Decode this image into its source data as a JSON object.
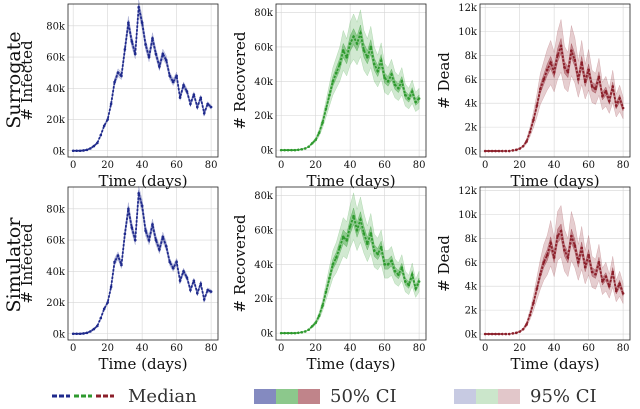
{
  "figure": {
    "row_labels": [
      "Surrogate",
      "Simulator"
    ],
    "legend": {
      "median": "Median",
      "ci50": "50% CI",
      "ci95": "95% CI"
    },
    "colors": {
      "infected": "#1f2a8c",
      "recovered": "#2e9a2e",
      "dead": "#8c1f2a"
    }
  },
  "chart_data": [
    {
      "row": "Surrogate",
      "metric": "infected",
      "type": "line",
      "xlabel": "Time (days)",
      "ylabel": "# Infected",
      "xlim": [
        -3,
        84
      ],
      "ylim": [
        -4000,
        94000
      ],
      "xticks": [
        0,
        20,
        40,
        60,
        80
      ],
      "xtick_labels": [
        "0",
        "20",
        "40",
        "60",
        "80"
      ],
      "yticks": [
        0,
        20000,
        40000,
        60000,
        80000
      ],
      "ytick_labels": [
        "0k",
        "20k",
        "40k",
        "60k",
        "80k"
      ],
      "ci_relative": [
        0.02,
        0.05
      ],
      "x": [
        0,
        2,
        4,
        6,
        8,
        10,
        12,
        14,
        16,
        18,
        20,
        22,
        24,
        26,
        28,
        30,
        32,
        34,
        36,
        38,
        40,
        42,
        44,
        46,
        48,
        50,
        52,
        54,
        56,
        58,
        60,
        62,
        64,
        66,
        68,
        70,
        72,
        74,
        76,
        78,
        80
      ],
      "median": [
        0,
        0,
        0,
        200,
        600,
        1500,
        3000,
        5000,
        10000,
        16000,
        20000,
        30000,
        44000,
        50000,
        48000,
        65000,
        82000,
        70000,
        62000,
        92000,
        82000,
        68000,
        60000,
        72000,
        62000,
        54000,
        62000,
        58000,
        48000,
        44000,
        48000,
        34000,
        42000,
        38000,
        30000,
        36000,
        28000,
        34000,
        24000,
        30000,
        28000
      ]
    },
    {
      "row": "Surrogate",
      "metric": "recovered",
      "type": "line",
      "xlabel": "Time (days)",
      "ylabel": "# Recovered",
      "xlim": [
        -3,
        84
      ],
      "ylim": [
        -4000,
        85000
      ],
      "xticks": [
        0,
        20,
        40,
        60,
        80
      ],
      "xtick_labels": [
        "0",
        "20",
        "40",
        "60",
        "80"
      ],
      "yticks": [
        0,
        20000,
        40000,
        60000,
        80000
      ],
      "ytick_labels": [
        "0k",
        "20k",
        "40k",
        "60k",
        "80k"
      ],
      "ci_relative": [
        0.07,
        0.2
      ],
      "x": [
        0,
        2,
        4,
        6,
        8,
        10,
        12,
        14,
        16,
        18,
        20,
        22,
        24,
        26,
        28,
        30,
        32,
        34,
        36,
        38,
        40,
        42,
        44,
        46,
        48,
        50,
        52,
        54,
        56,
        58,
        60,
        62,
        64,
        66,
        68,
        70,
        72,
        74,
        76,
        78,
        80
      ],
      "median": [
        0,
        0,
        0,
        0,
        0,
        200,
        500,
        1000,
        2000,
        4000,
        6000,
        10000,
        16000,
        24000,
        32000,
        40000,
        45000,
        50000,
        58000,
        54000,
        62000,
        66000,
        62000,
        68000,
        58000,
        54000,
        60000,
        50000,
        46000,
        52000,
        42000,
        40000,
        44000,
        38000,
        36000,
        40000,
        32000,
        30000,
        34000,
        28000,
        30000
      ]
    },
    {
      "row": "Surrogate",
      "metric": "dead",
      "type": "line",
      "xlabel": "Time (days)",
      "ylabel": "# Dead",
      "xlim": [
        -3,
        84
      ],
      "ylim": [
        -500,
        12300
      ],
      "xticks": [
        0,
        20,
        40,
        60,
        80
      ],
      "xtick_labels": [
        "0",
        "20",
        "40",
        "60",
        "80"
      ],
      "yticks": [
        0,
        2000,
        4000,
        6000,
        8000,
        10000,
        12000
      ],
      "ytick_labels": [
        "0k",
        "2k",
        "4k",
        "6k",
        "8k",
        "10k",
        "12k"
      ],
      "ci_relative": [
        0.07,
        0.25
      ],
      "x": [
        0,
        2,
        4,
        6,
        8,
        10,
        12,
        14,
        16,
        18,
        20,
        22,
        24,
        26,
        28,
        30,
        32,
        34,
        36,
        38,
        40,
        42,
        44,
        46,
        48,
        50,
        52,
        54,
        56,
        58,
        60,
        62,
        64,
        66,
        68,
        70,
        72,
        74,
        76,
        78,
        80
      ],
      "median": [
        0,
        0,
        0,
        0,
        0,
        0,
        0,
        0,
        50,
        100,
        200,
        400,
        800,
        1600,
        2600,
        3800,
        5200,
        6000,
        6800,
        7400,
        6600,
        8000,
        8800,
        7000,
        6600,
        8400,
        7600,
        6000,
        7400,
        5800,
        6800,
        5400,
        5200,
        6200,
        4600,
        5000,
        4200,
        5400,
        3800,
        4400,
        3600
      ]
    },
    {
      "row": "Simulator",
      "metric": "infected",
      "type": "line",
      "xlabel": "Time (days)",
      "ylabel": "# Infected",
      "xlim": [
        -3,
        84
      ],
      "ylim": [
        -4000,
        94000
      ],
      "xticks": [
        0,
        20,
        40,
        60,
        80
      ],
      "xtick_labels": [
        "0",
        "20",
        "40",
        "60",
        "80"
      ],
      "yticks": [
        0,
        20000,
        40000,
        60000,
        80000
      ],
      "ytick_labels": [
        "0k",
        "20k",
        "40k",
        "60k",
        "80k"
      ],
      "ci_relative": [
        0.02,
        0.05
      ],
      "x": [
        0,
        2,
        4,
        6,
        8,
        10,
        12,
        14,
        16,
        18,
        20,
        22,
        24,
        26,
        28,
        30,
        32,
        34,
        36,
        38,
        40,
        42,
        44,
        46,
        48,
        50,
        52,
        54,
        56,
        58,
        60,
        62,
        64,
        66,
        68,
        70,
        72,
        74,
        76,
        78,
        80
      ],
      "median": [
        0,
        0,
        0,
        200,
        600,
        1500,
        3000,
        5000,
        10000,
        16000,
        20000,
        30000,
        46000,
        50000,
        44000,
        64000,
        80000,
        68000,
        60000,
        90000,
        82000,
        66000,
        60000,
        70000,
        60000,
        54000,
        62000,
        56000,
        46000,
        42000,
        46000,
        34000,
        40000,
        36000,
        28000,
        34000,
        26000,
        32000,
        22000,
        28000,
        27000
      ]
    },
    {
      "row": "Simulator",
      "metric": "recovered",
      "type": "line",
      "xlabel": "Time (days)",
      "ylabel": "# Recovered",
      "xlim": [
        -3,
        84
      ],
      "ylim": [
        -4000,
        85000
      ],
      "xticks": [
        0,
        20,
        40,
        60,
        80
      ],
      "xtick_labels": [
        "0",
        "20",
        "40",
        "60",
        "80"
      ],
      "yticks": [
        0,
        20000,
        40000,
        60000,
        80000
      ],
      "ytick_labels": [
        "0k",
        "20k",
        "40k",
        "60k",
        "80k"
      ],
      "ci_relative": [
        0.07,
        0.2
      ],
      "x": [
        0,
        2,
        4,
        6,
        8,
        10,
        12,
        14,
        16,
        18,
        20,
        22,
        24,
        26,
        28,
        30,
        32,
        34,
        36,
        38,
        40,
        42,
        44,
        46,
        48,
        50,
        52,
        54,
        56,
        58,
        60,
        62,
        64,
        66,
        68,
        70,
        72,
        74,
        76,
        78,
        80
      ],
      "median": [
        0,
        0,
        0,
        0,
        0,
        200,
        500,
        1000,
        2000,
        4000,
        6000,
        10000,
        16000,
        24000,
        32000,
        40000,
        44000,
        50000,
        56000,
        54000,
        62000,
        68000,
        60000,
        66000,
        58000,
        52000,
        58000,
        48000,
        46000,
        50000,
        40000,
        40000,
        42000,
        36000,
        34000,
        38000,
        30000,
        28000,
        34000,
        26000,
        30000
      ]
    },
    {
      "row": "Simulator",
      "metric": "dead",
      "type": "line",
      "xlabel": "Time (days)",
      "ylabel": "# Dead",
      "xlim": [
        -3,
        84
      ],
      "ylim": [
        -500,
        12300
      ],
      "xticks": [
        0,
        20,
        40,
        60,
        80
      ],
      "xtick_labels": [
        "0",
        "20",
        "40",
        "60",
        "80"
      ],
      "yticks": [
        0,
        2000,
        4000,
        6000,
        8000,
        10000,
        12000
      ],
      "ytick_labels": [
        "0k",
        "2k",
        "4k",
        "6k",
        "8k",
        "10k",
        "12k"
      ],
      "ci_relative": [
        0.07,
        0.25
      ],
      "x": [
        0,
        2,
        4,
        6,
        8,
        10,
        12,
        14,
        16,
        18,
        20,
        22,
        24,
        26,
        28,
        30,
        32,
        34,
        36,
        38,
        40,
        42,
        44,
        46,
        48,
        50,
        52,
        54,
        56,
        58,
        60,
        62,
        64,
        66,
        68,
        70,
        72,
        74,
        76,
        78,
        80
      ],
      "median": [
        0,
        0,
        0,
        0,
        0,
        0,
        0,
        0,
        50,
        100,
        200,
        400,
        800,
        1600,
        2600,
        3800,
        5000,
        6000,
        6600,
        7600,
        6400,
        8200,
        8600,
        7000,
        6400,
        8200,
        7400,
        6000,
        7200,
        5600,
        6600,
        5200,
        5000,
        6000,
        4400,
        4800,
        4000,
        5200,
        3600,
        4200,
        3400
      ]
    }
  ]
}
